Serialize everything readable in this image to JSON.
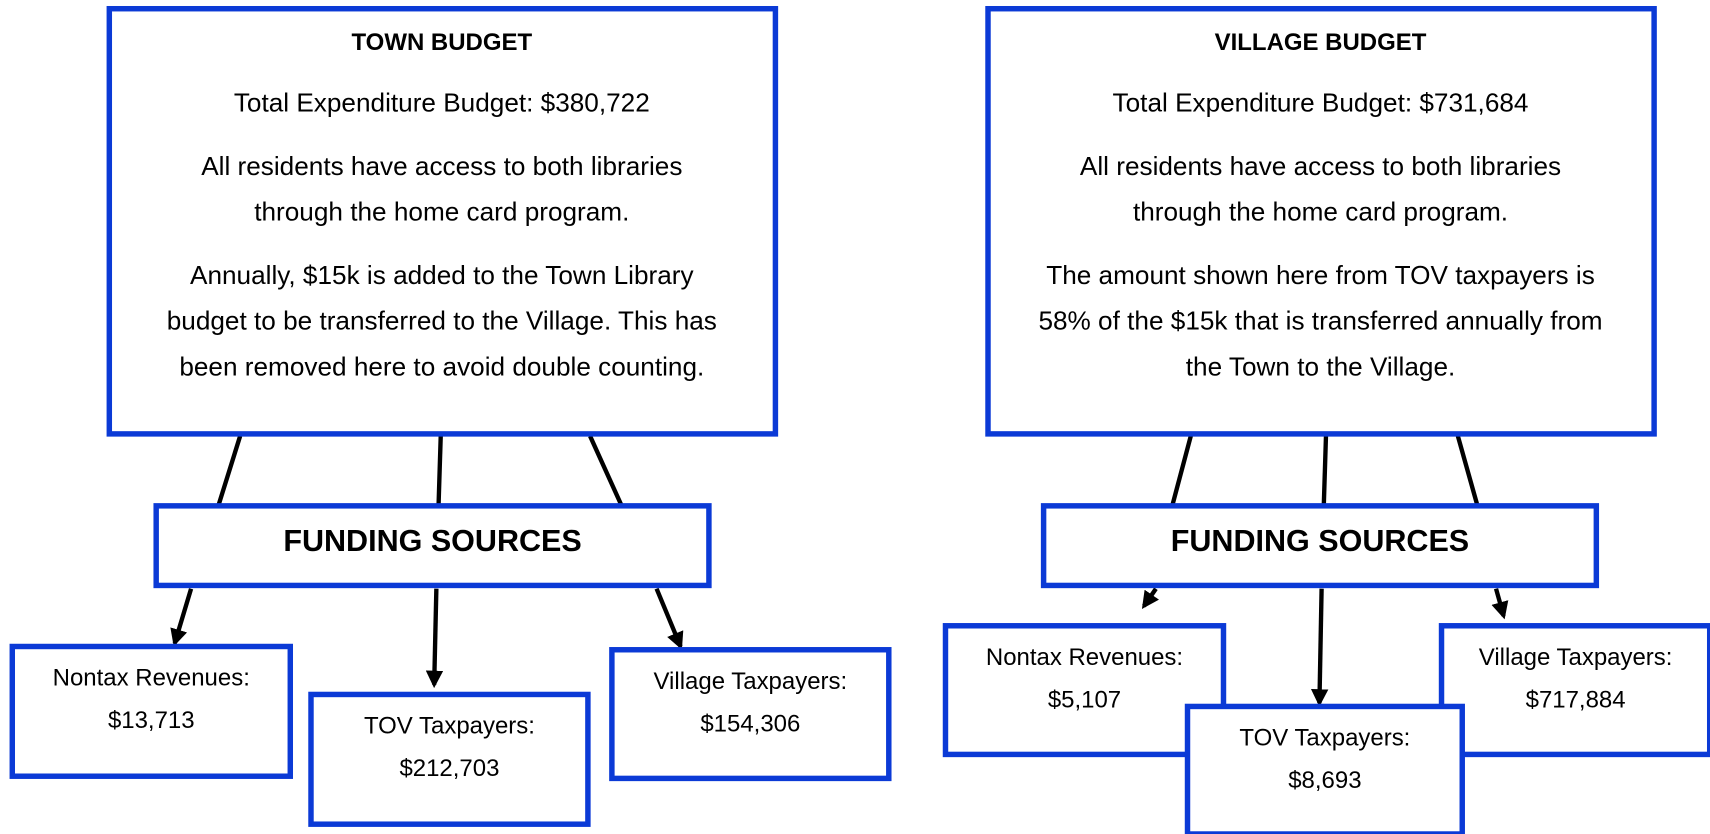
{
  "diagrams": [
    {
      "title": "TOWN BUDGET",
      "total": "Total Expenditure Budget: $380,722",
      "paragraphs": [
        [
          "All residents have access to both libraries",
          "through the home card program."
        ],
        [
          "Annually, $15k is added to the Town Library",
          "budget to be transferred to the Village.  This has",
          "been removed here to avoid double counting."
        ]
      ],
      "hub": "FUNDING SOURCES",
      "sources": [
        {
          "label": "Nontax Revenues:",
          "amount": "$13,713"
        },
        {
          "label": "TOV Taxpayers:",
          "amount": "$212,703"
        },
        {
          "label": "Village Taxpayers:",
          "amount": "$154,306"
        }
      ]
    },
    {
      "title": "VILLAGE BUDGET",
      "total": "Total Expenditure Budget: $731,684",
      "paragraphs": [
        [
          "All residents have access to both libraries",
          "through the home card program."
        ],
        [
          "The amount shown here from TOV taxpayers is",
          "58% of the $15k that is transferred annually from",
          "the Town to the Village."
        ]
      ],
      "hub": "FUNDING SOURCES",
      "sources": [
        {
          "label": "Nontax Revenues:",
          "amount": "$5,107"
        },
        {
          "label": "TOV Taxpayers:",
          "amount": "$8,693"
        },
        {
          "label": "Village Taxpayers:",
          "amount": "$717,884"
        }
      ]
    }
  ]
}
